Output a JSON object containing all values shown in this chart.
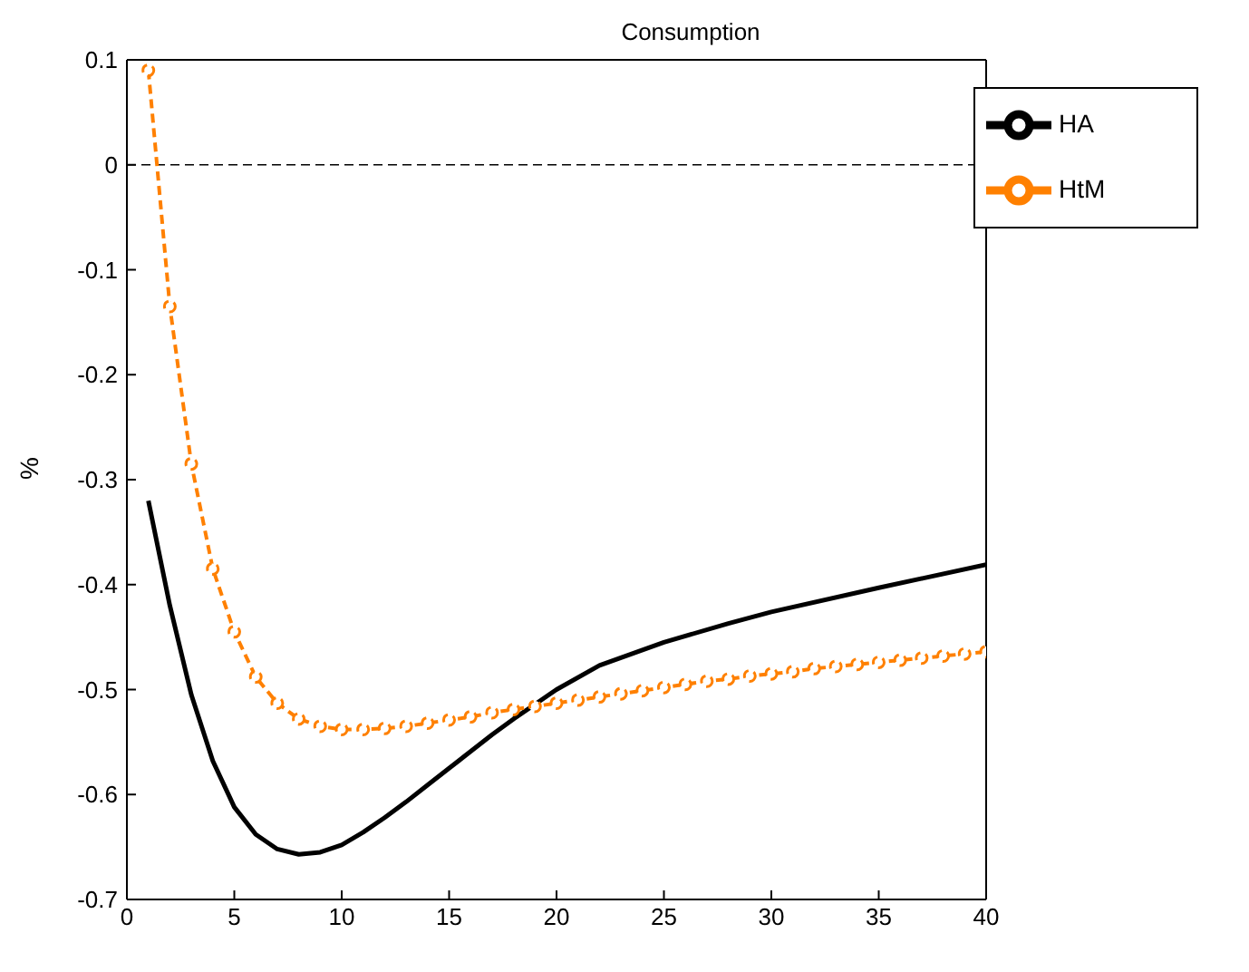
{
  "chart_data": {
    "type": "line",
    "title": "Consumption",
    "ylabel": "%",
    "xlim": [
      0,
      40
    ],
    "xticks": [
      0,
      5,
      10,
      15,
      20,
      25,
      30,
      35,
      40
    ],
    "ylim": [
      -0.7,
      0.1
    ],
    "yticks": [
      -0.7,
      -0.6,
      -0.5,
      -0.4,
      -0.3,
      -0.2,
      -0.1,
      0,
      0.1
    ],
    "grid": false,
    "legend": "top right",
    "ref_lines": [
      {
        "axis": "y",
        "value": 0,
        "color": "#000000",
        "line_style": "dashed"
      }
    ],
    "series": [
      {
        "name": "HA",
        "color": "#000000",
        "line_style": "solid",
        "marker": "none",
        "x": [
          1,
          2,
          3,
          4,
          5,
          6,
          7,
          8,
          9,
          10,
          11,
          12,
          13,
          14,
          15,
          16,
          17,
          18,
          19,
          20,
          22,
          25,
          28,
          30,
          35,
          40
        ],
        "values": [
          -0.32,
          -0.42,
          -0.505,
          -0.568,
          -0.612,
          -0.638,
          -0.652,
          -0.657,
          -0.655,
          -0.648,
          -0.636,
          -0.622,
          -0.607,
          -0.591,
          -0.575,
          -0.559,
          -0.543,
          -0.528,
          -0.514,
          -0.5,
          -0.477,
          -0.455,
          -0.437,
          -0.426,
          -0.403,
          -0.381
        ]
      },
      {
        "name": "HtM",
        "color": "#ff8000",
        "line_style": "dashed",
        "marker": "circle",
        "x": [
          1,
          2,
          3,
          4,
          5,
          6,
          7,
          8,
          9,
          10,
          11,
          12,
          13,
          14,
          15,
          16,
          17,
          18,
          19,
          20,
          21,
          22,
          23,
          24,
          25,
          26,
          27,
          28,
          29,
          30,
          31,
          32,
          33,
          34,
          35,
          36,
          37,
          38,
          39,
          40
        ],
        "values": [
          0.09,
          -0.135,
          -0.285,
          -0.385,
          -0.445,
          -0.488,
          -0.513,
          -0.528,
          -0.535,
          -0.538,
          -0.538,
          -0.537,
          -0.535,
          -0.532,
          -0.529,
          -0.526,
          -0.522,
          -0.519,
          -0.516,
          -0.513,
          -0.51,
          -0.507,
          -0.504,
          -0.501,
          -0.498,
          -0.495,
          -0.492,
          -0.49,
          -0.487,
          -0.485,
          -0.483,
          -0.48,
          -0.478,
          -0.476,
          -0.474,
          -0.472,
          -0.47,
          -0.468,
          -0.466,
          -0.464
        ]
      }
    ]
  }
}
